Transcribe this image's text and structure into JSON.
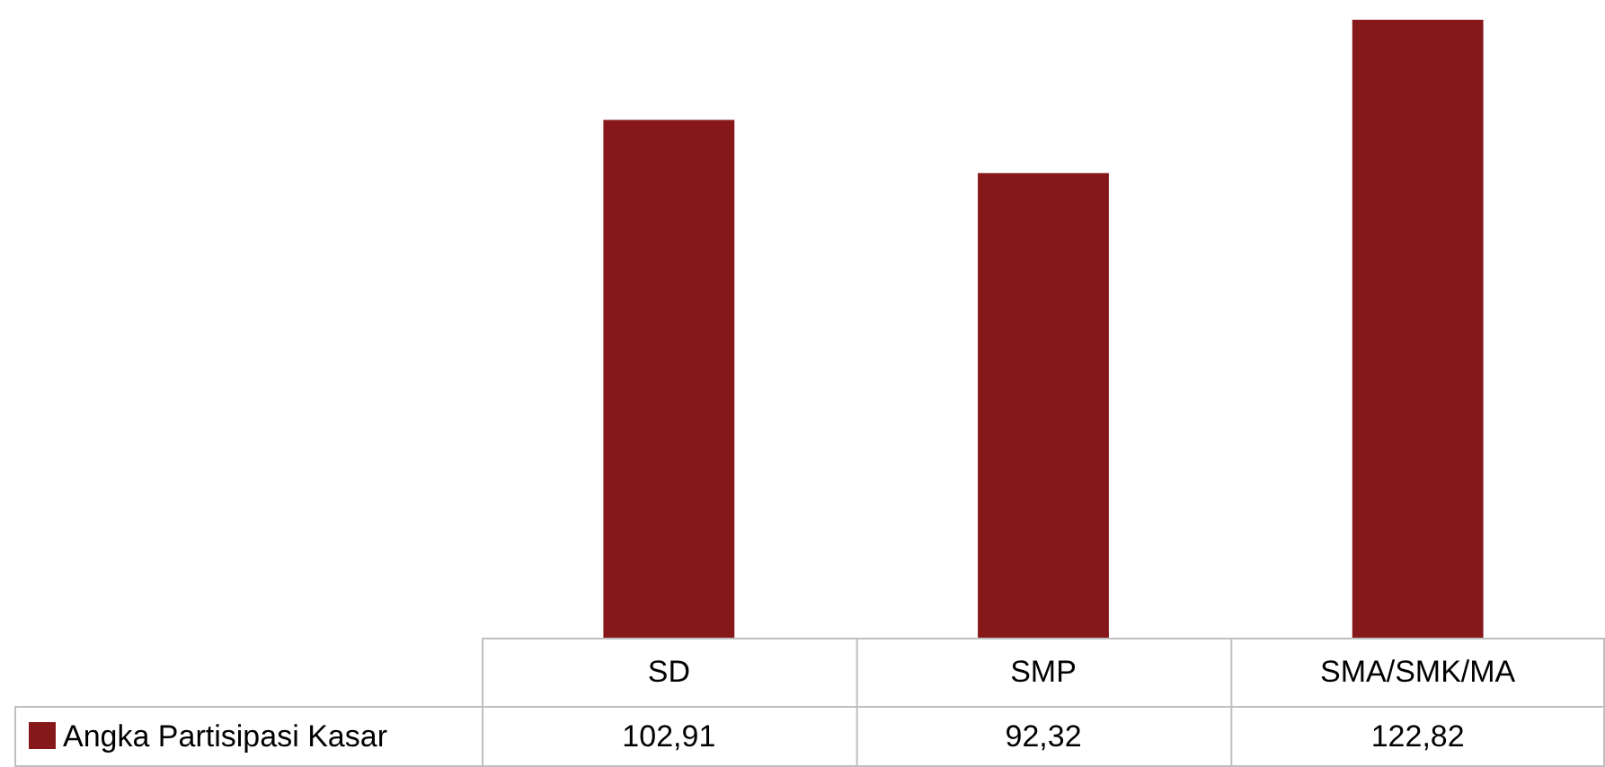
{
  "chart_data": {
    "type": "bar",
    "categories": [
      "SD",
      "SMP",
      "SMA/SMK/MA"
    ],
    "series": [
      {
        "name": "Angka Partisipasi Kasar",
        "color": "#87181a",
        "values": [
          102.91,
          92.32,
          122.82
        ],
        "value_labels": [
          "102,91",
          "92,32",
          "122,82"
        ]
      }
    ],
    "legend": "bottom left"
  }
}
